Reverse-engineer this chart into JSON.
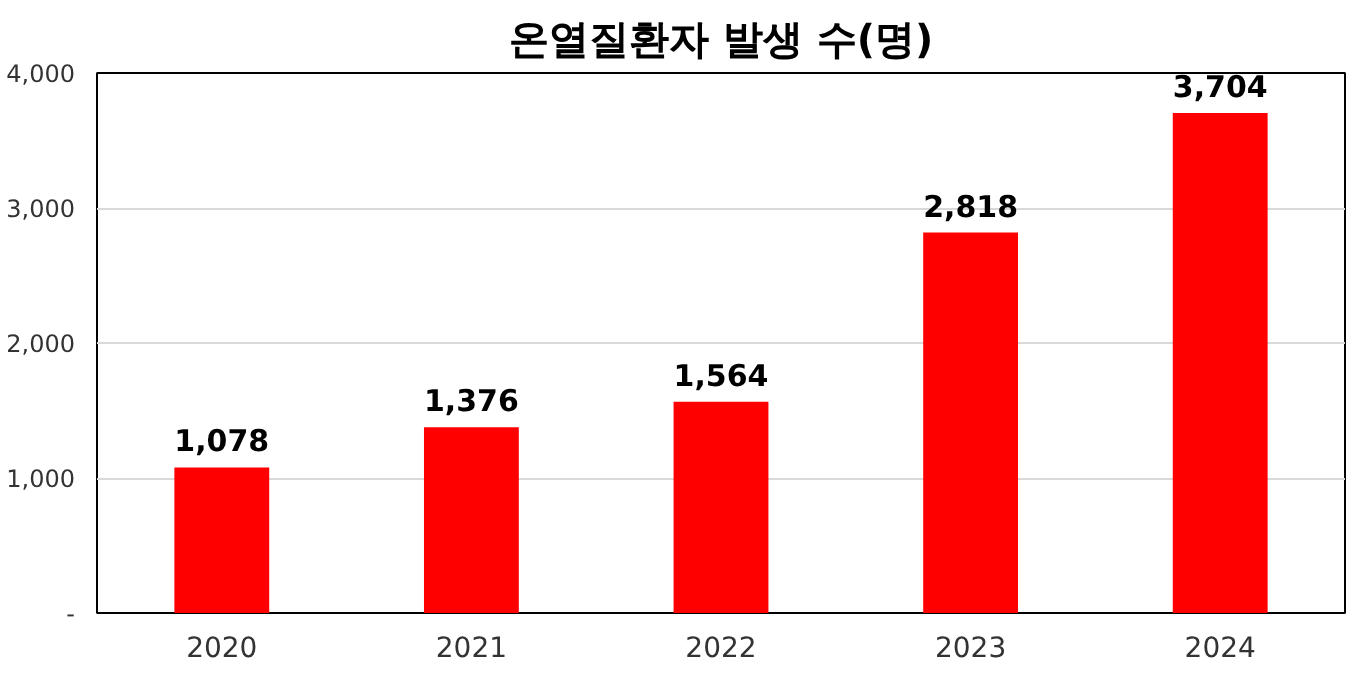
{
  "chart_data": {
    "type": "bar",
    "title": "온열질환자 발생 수(명)",
    "categories": [
      "2020",
      "2021",
      "2022",
      "2023",
      "2024"
    ],
    "values": [
      1078,
      1376,
      1564,
      2818,
      3704
    ],
    "value_labels": [
      "1,078",
      "1,376",
      "1,564",
      "2,818",
      "3,704"
    ],
    "color": "#ff0000",
    "ylim": [
      0,
      4000
    ],
    "yticks": [
      {
        "value": 0,
        "label": "-"
      },
      {
        "value": 1000,
        "label": "1,000"
      },
      {
        "value": 2000,
        "label": "2,000"
      },
      {
        "value": 3000,
        "label": "3,000"
      },
      {
        "value": 4000,
        "label": "4,000"
      }
    ],
    "grid": "y"
  }
}
